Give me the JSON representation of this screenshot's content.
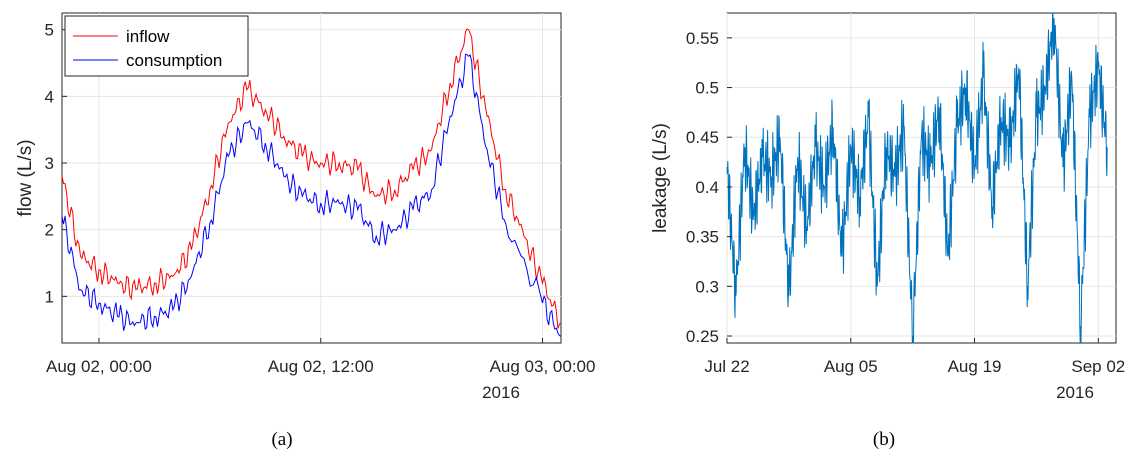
{
  "chart_data": [
    {
      "type": "line",
      "panel_label": "(a)",
      "ylabel": "flow (L/s)",
      "xlabel": "",
      "x_start": "2016-08-01 22:00",
      "x_end": "2016-08-03 01:00",
      "xticks": [
        {
          "x": "2016-08-02 00:00",
          "label": "Aug 02, 00:00"
        },
        {
          "x": "2016-08-02 12:00",
          "label": "Aug 02, 12:00"
        },
        {
          "x": "2016-08-03 00:00",
          "label": "Aug 03, 00:00"
        }
      ],
      "x_year_label": "2016",
      "ylim": [
        0.3,
        5.25
      ],
      "yticks": [
        1,
        2,
        3,
        4,
        5
      ],
      "grid": true,
      "legend": {
        "placement": "top-left"
      },
      "series": [
        {
          "name": "inflow",
          "color": "#ff0000",
          "x": [
            "2016-08-01 22:00",
            "2016-08-01 23:00",
            "2016-08-02 00:00",
            "2016-08-02 01:00",
            "2016-08-02 02:00",
            "2016-08-02 03:00",
            "2016-08-02 04:00",
            "2016-08-02 05:00",
            "2016-08-02 06:00",
            "2016-08-02 07:00",
            "2016-08-02 08:00",
            "2016-08-02 09:00",
            "2016-08-02 10:00",
            "2016-08-02 11:00",
            "2016-08-02 12:00",
            "2016-08-02 13:00",
            "2016-08-02 14:00",
            "2016-08-02 15:00",
            "2016-08-02 16:00",
            "2016-08-02 17:00",
            "2016-08-02 18:00",
            "2016-08-02 19:00",
            "2016-08-02 20:00",
            "2016-08-02 21:00",
            "2016-08-02 22:00",
            "2016-08-02 23:00",
            "2016-08-03 00:00",
            "2016-08-03 01:00"
          ],
          "values": [
            2.8,
            1.6,
            1.4,
            1.2,
            1.1,
            1.2,
            1.3,
            1.7,
            2.6,
            3.6,
            4.1,
            3.8,
            3.4,
            3.1,
            3.0,
            3.0,
            2.9,
            2.5,
            2.6,
            2.9,
            3.2,
            4.2,
            5.0,
            3.7,
            2.6,
            1.9,
            1.2,
            0.6
          ]
        },
        {
          "name": "consumption",
          "color": "#0000ff",
          "x": [
            "2016-08-01 22:00",
            "2016-08-01 23:00",
            "2016-08-02 00:00",
            "2016-08-02 01:00",
            "2016-08-02 02:00",
            "2016-08-02 03:00",
            "2016-08-02 04:00",
            "2016-08-02 05:00",
            "2016-08-02 06:00",
            "2016-08-02 07:00",
            "2016-08-02 08:00",
            "2016-08-02 09:00",
            "2016-08-02 10:00",
            "2016-08-02 11:00",
            "2016-08-02 12:00",
            "2016-08-02 13:00",
            "2016-08-02 14:00",
            "2016-08-02 15:00",
            "2016-08-02 16:00",
            "2016-08-02 17:00",
            "2016-08-02 18:00",
            "2016-08-02 19:00",
            "2016-08-02 20:00",
            "2016-08-02 21:00",
            "2016-08-02 22:00",
            "2016-08-03 00:00",
            "2016-08-03 01:00"
          ],
          "values": [
            2.2,
            1.1,
            0.9,
            0.7,
            0.6,
            0.7,
            0.8,
            1.3,
            2.1,
            3.1,
            3.6,
            3.3,
            2.8,
            2.5,
            2.4,
            2.4,
            2.3,
            1.9,
            2.0,
            2.3,
            2.6,
            3.7,
            4.6,
            3.2,
            2.1,
            0.9,
            0.4
          ]
        }
      ]
    },
    {
      "type": "line",
      "panel_label": "(b)",
      "ylabel": "leakage (L/s)",
      "xlabel": "",
      "x_start": "2016-07-22",
      "x_end": "2016-09-04",
      "xticks": [
        {
          "x": "2016-07-22",
          "label": "Jul 22"
        },
        {
          "x": "2016-08-05",
          "label": "Aug 05"
        },
        {
          "x": "2016-08-19",
          "label": "Aug 19"
        },
        {
          "x": "2016-09-02",
          "label": "Sep 02"
        }
      ],
      "x_year_label": "2016",
      "ylim": [
        0.243,
        0.575
      ],
      "yticks": [
        0.25,
        0.3,
        0.35,
        0.4,
        0.45,
        0.5,
        0.55
      ],
      "ytick_labels": [
        "0.25",
        "0.3",
        "0.35",
        "0.4",
        "0.45",
        "0.5",
        "0.55"
      ],
      "grid": true,
      "series": [
        {
          "color": "#0072bd",
          "x": [
            "2016-07-22",
            "2016-07-23",
            "2016-07-24",
            "2016-07-25",
            "2016-07-26",
            "2016-07-27",
            "2016-07-28",
            "2016-07-29",
            "2016-07-30",
            "2016-07-31",
            "2016-08-01",
            "2016-08-02",
            "2016-08-03",
            "2016-08-04",
            "2016-08-05",
            "2016-08-06",
            "2016-08-07",
            "2016-08-08",
            "2016-08-09",
            "2016-08-10",
            "2016-08-11",
            "2016-08-12",
            "2016-08-13",
            "2016-08-14",
            "2016-08-15",
            "2016-08-16",
            "2016-08-17",
            "2016-08-18",
            "2016-08-19",
            "2016-08-20",
            "2016-08-21",
            "2016-08-22",
            "2016-08-23",
            "2016-08-24",
            "2016-08-25",
            "2016-08-26",
            "2016-08-27",
            "2016-08-28",
            "2016-08-29",
            "2016-08-30",
            "2016-08-31",
            "2016-09-01",
            "2016-09-02",
            "2016-09-03"
          ],
          "values": [
            0.42,
            0.29,
            0.44,
            0.37,
            0.43,
            0.41,
            0.45,
            0.29,
            0.43,
            0.36,
            0.44,
            0.4,
            0.46,
            0.33,
            0.44,
            0.39,
            0.47,
            0.3,
            0.44,
            0.41,
            0.46,
            0.25,
            0.45,
            0.42,
            0.48,
            0.33,
            0.46,
            0.5,
            0.42,
            0.51,
            0.38,
            0.47,
            0.44,
            0.52,
            0.3,
            0.47,
            0.5,
            0.57,
            0.42,
            0.51,
            0.26,
            0.47,
            0.52,
            0.44
          ]
        }
      ]
    }
  ]
}
